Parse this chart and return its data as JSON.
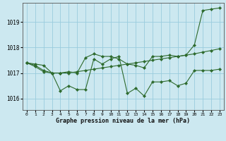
{
  "title": "Graphe pression niveau de la mer (hPa)",
  "background_color": "#cce8f0",
  "grid_color": "#99ccdd",
  "line_color": "#2d6a2d",
  "x_ticks": [
    0,
    1,
    2,
    3,
    4,
    5,
    6,
    7,
    8,
    9,
    10,
    11,
    12,
    13,
    14,
    15,
    16,
    17,
    18,
    19,
    20,
    21,
    22,
    23
  ],
  "y_ticks": [
    1016,
    1017,
    1018,
    1019
  ],
  "ylim": [
    1015.55,
    1019.75
  ],
  "xlim": [
    -0.5,
    23.5
  ],
  "line1_y": [
    1017.4,
    1017.25,
    1017.05,
    1017.0,
    1016.3,
    1016.5,
    1016.35,
    1016.35,
    1017.55,
    1017.35,
    1017.55,
    1017.65,
    1016.2,
    1016.4,
    1016.1,
    1016.65,
    1016.65,
    1016.7,
    1016.5,
    1016.6,
    1017.1,
    1017.1,
    1017.1,
    1017.15
  ],
  "line2_y": [
    1017.4,
    1017.3,
    1017.1,
    1017.0,
    1017.0,
    1017.0,
    1017.05,
    1017.1,
    1017.15,
    1017.2,
    1017.25,
    1017.3,
    1017.35,
    1017.4,
    1017.45,
    1017.5,
    1017.55,
    1017.6,
    1017.65,
    1017.7,
    1017.75,
    1017.82,
    1017.88,
    1017.95
  ],
  "line3_y": [
    1017.4,
    1017.35,
    1017.3,
    1017.0,
    1017.0,
    1017.05,
    1017.0,
    1017.6,
    1017.75,
    1017.65,
    1017.65,
    1017.55,
    1017.35,
    1017.3,
    1017.2,
    1017.65,
    1017.65,
    1017.7,
    1017.65,
    1017.7,
    1018.1,
    1019.45,
    1019.5,
    1019.55
  ]
}
